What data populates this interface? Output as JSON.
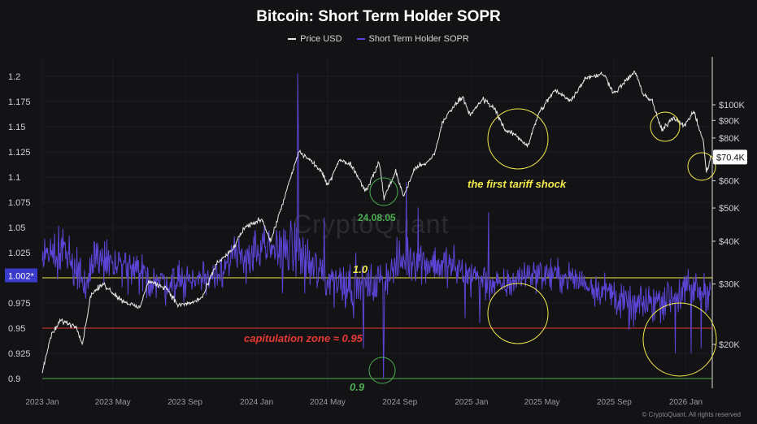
{
  "chart_data": {
    "type": "line",
    "title": "Bitcoin: Short Term Holder SOPR",
    "x_ticks": [
      "2023 Jan",
      "2023 May",
      "2023 Sep",
      "2024 Jan",
      "2024 May",
      "2024 Sep",
      "2025 Jan",
      "2025 May",
      "2025 Sep",
      "2026 Jan"
    ],
    "left_axis": {
      "ticks": [
        "1.2",
        "1.175",
        "1.15",
        "1.125",
        "1.1",
        "1.075",
        "1.05",
        "1.025",
        "1",
        "0.975",
        "0.95",
        "0.925",
        "0.9"
      ],
      "ylim": [
        0.895,
        1.22
      ],
      "current_label": "1.002*"
    },
    "right_axis": {
      "scale": "log",
      "ticks": [
        "$100K",
        "$90K",
        "$80K",
        "$70K",
        "$60K",
        "$50K",
        "$40K",
        "$30K",
        "$20K"
      ],
      "current_label": "$70.4K"
    },
    "series": [
      {
        "name": "Price USD",
        "color": "#e8e8e8",
        "axis": "right",
        "points": [
          [
            "2023-01-01",
            16500
          ],
          [
            "2023-01-15",
            21000
          ],
          [
            "2023-02-01",
            23500
          ],
          [
            "2023-03-01",
            22500
          ],
          [
            "2023-03-10",
            20000
          ],
          [
            "2023-03-25",
            28000
          ],
          [
            "2023-04-15",
            30000
          ],
          [
            "2023-05-15",
            27000
          ],
          [
            "2023-06-15",
            25500
          ],
          [
            "2023-07-01",
            30500
          ],
          [
            "2023-08-01",
            29200
          ],
          [
            "2023-08-20",
            26000
          ],
          [
            "2023-09-15",
            26500
          ],
          [
            "2023-10-01",
            27500
          ],
          [
            "2023-10-25",
            34500
          ],
          [
            "2023-11-20",
            37500
          ],
          [
            "2023-12-10",
            43500
          ],
          [
            "2024-01-10",
            46500
          ],
          [
            "2024-01-25",
            40000
          ],
          [
            "2024-02-15",
            52000
          ],
          [
            "2024-03-13",
            73000
          ],
          [
            "2024-04-01",
            69000
          ],
          [
            "2024-04-20",
            64000
          ],
          [
            "2024-05-01",
            58000
          ],
          [
            "2024-05-20",
            69000
          ],
          [
            "2024-06-10",
            67000
          ],
          [
            "2024-07-05",
            56000
          ],
          [
            "2024-07-28",
            68000
          ],
          [
            "2024-08-05",
            53500
          ],
          [
            "2024-08-25",
            64000
          ],
          [
            "2024-09-07",
            54000
          ],
          [
            "2024-09-28",
            66000
          ],
          [
            "2024-10-15",
            67000
          ],
          [
            "2024-10-30",
            72000
          ],
          [
            "2024-11-12",
            88000
          ],
          [
            "2024-11-25",
            96000
          ],
          [
            "2024-12-17",
            106000
          ],
          [
            "2024-12-30",
            93000
          ],
          [
            "2025-01-20",
            104000
          ],
          [
            "2025-02-10",
            97000
          ],
          [
            "2025-02-28",
            84000
          ],
          [
            "2025-03-15",
            82000
          ],
          [
            "2025-04-07",
            76000
          ],
          [
            "2025-04-25",
            94000
          ],
          [
            "2025-05-22",
            110000
          ],
          [
            "2025-06-20",
            103000
          ],
          [
            "2025-07-14",
            120000
          ],
          [
            "2025-08-14",
            123000
          ],
          [
            "2025-09-01",
            108000
          ],
          [
            "2025-10-06",
            125000
          ],
          [
            "2025-10-20",
            108000
          ],
          [
            "2025-11-05",
            102000
          ],
          [
            "2025-11-21",
            84000
          ],
          [
            "2025-12-10",
            92000
          ],
          [
            "2025-12-31",
            87000
          ],
          [
            "2026-01-14",
            96000
          ],
          [
            "2026-01-31",
            78000
          ],
          [
            "2026-02-05",
            63000
          ],
          [
            "2026-02-12",
            70400
          ]
        ]
      },
      {
        "name": "Short Term Holder SOPR",
        "color": "#5b45d6",
        "axis": "left",
        "generated": "daily oscillation around 1.0 with spikes at 2024-03-12 (1.203) and 2024-08-05 (0.9)"
      }
    ],
    "reference_lines": [
      {
        "value": 1.0,
        "label": "1.0",
        "color": "#f2e94e"
      },
      {
        "value": 0.95,
        "label": "capitulation zone ≈ 0.95",
        "color": "#e53935"
      },
      {
        "value": 0.9,
        "label": "0.9",
        "color": "#4caf50"
      }
    ],
    "annotations": [
      {
        "text": "24.08.05",
        "color": "#4caf50"
      },
      {
        "text": "the first tariff shock",
        "color": "#f2e94e"
      }
    ]
  },
  "legend": {
    "price_label": "Price USD",
    "sopr_label": "Short Term Holder SOPR"
  },
  "watermark": "CryptoQuant",
  "credit": "© CryptoQuant. All rights reserved"
}
